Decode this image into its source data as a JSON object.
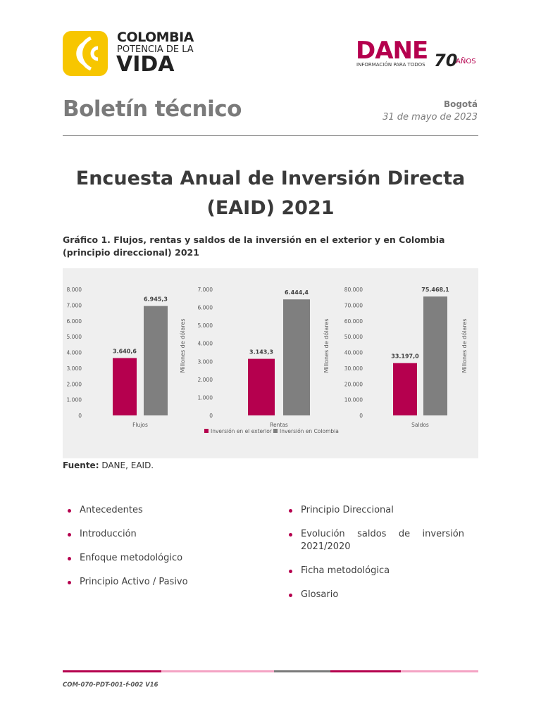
{
  "header": {
    "logo_line1": "COLOMBIA",
    "logo_line2": "POTENCIA DE LA",
    "logo_line3": "VIDA",
    "dane_name": "DANE",
    "dane_tagline": "INFORMACIÓN PARA TODOS",
    "dane_years": "70",
    "dane_years_word": "AÑOS",
    "doc_type": "Boletín técnico",
    "city": "Bogotá",
    "date": "31 de mayo de 2023"
  },
  "title": {
    "line1": "Encuesta Anual de Inversión Directa",
    "line2": "(EAID) 2021"
  },
  "caption": "Gráfico 1. Flujos, rentas y saldos de la inversión en el exterior y en Colombia (principio direccional) 2021",
  "chart_data": [
    {
      "type": "bar",
      "categories": [
        "Flujos"
      ],
      "ylabel": "Millones de dólares",
      "ylim": [
        0,
        8000
      ],
      "yticks": [
        0,
        {
          "value": 1000,
          "label": "1.000"
        },
        {
          "value": 2000,
          "label": "2.000"
        },
        {
          "value": 3000,
          "label": "3.000"
        },
        {
          "value": 4000,
          "label": "4.000"
        },
        {
          "value": 5000,
          "label": "5.000"
        },
        {
          "value": 6000,
          "label": "6.000"
        },
        {
          "value": 7000,
          "label": "7.000"
        },
        {
          "value": 8000,
          "label": "8.000"
        }
      ],
      "series": [
        {
          "name": "Inversión en el exterior",
          "color": "#b5004e",
          "values": [
            3640.6
          ],
          "value_labels": [
            "3.640,6"
          ]
        },
        {
          "name": "Inversión en Colombia",
          "color": "#7f7f7f",
          "values": [
            6945.3
          ],
          "value_labels": [
            "6.945,3"
          ]
        }
      ]
    },
    {
      "type": "bar",
      "categories": [
        "Rentas"
      ],
      "ylabel": "Millones de dólares",
      "ylim": [
        0,
        7000
      ],
      "yticks": [
        0,
        {
          "value": 1000,
          "label": "1.000"
        },
        {
          "value": 2000,
          "label": "2.000"
        },
        {
          "value": 3000,
          "label": "3.000"
        },
        {
          "value": 4000,
          "label": "4.000"
        },
        {
          "value": 5000,
          "label": "5.000"
        },
        {
          "value": 6000,
          "label": "6.000"
        },
        {
          "value": 7000,
          "label": "7.000"
        }
      ],
      "series": [
        {
          "color": "#b5004e",
          "values": [
            3143.3
          ],
          "value_labels": [
            "3.143,3"
          ]
        },
        {
          "color": "#7f7f7f",
          "values": [
            6444.4
          ],
          "value_labels": [
            "6.444,4"
          ]
        }
      ]
    },
    {
      "type": "bar",
      "categories": [
        "Saldos"
      ],
      "ylabel": "Millones de dólares",
      "ylim": [
        0,
        80000
      ],
      "yticks": [
        0,
        {
          "value": 10000,
          "label": "10.000"
        },
        {
          "value": 20000,
          "label": "20.000"
        },
        {
          "value": 30000,
          "label": "30.000"
        },
        {
          "value": 40000,
          "label": "40.000"
        },
        {
          "value": 50000,
          "label": "50.000"
        },
        {
          "value": 60000,
          "label": "60.000"
        },
        {
          "value": 70000,
          "label": "70.000"
        },
        {
          "value": 80000,
          "label": "80.000"
        }
      ],
      "series": [
        {
          "color": "#b5004e",
          "values": [
            33197.0
          ],
          "value_labels": [
            "33.197,0"
          ]
        },
        {
          "color": "#7f7f7f",
          "values": [
            75468.1
          ],
          "value_labels": [
            "75.468,1"
          ]
        }
      ]
    }
  ],
  "source": {
    "label": "Fuente:",
    "text": " DANE, EAID."
  },
  "contents": {
    "left": [
      "Antecedentes",
      "Introducción",
      "Enfoque metodológico",
      "Principio Activo / Pasivo"
    ],
    "right": [
      "Principio Direccional",
      "Evolución saldos de inversión 2021/2020",
      "Ficha metodológica",
      "Glosario"
    ]
  },
  "footer": {
    "code": "COM-070-PDT-001-f-002 V16"
  }
}
